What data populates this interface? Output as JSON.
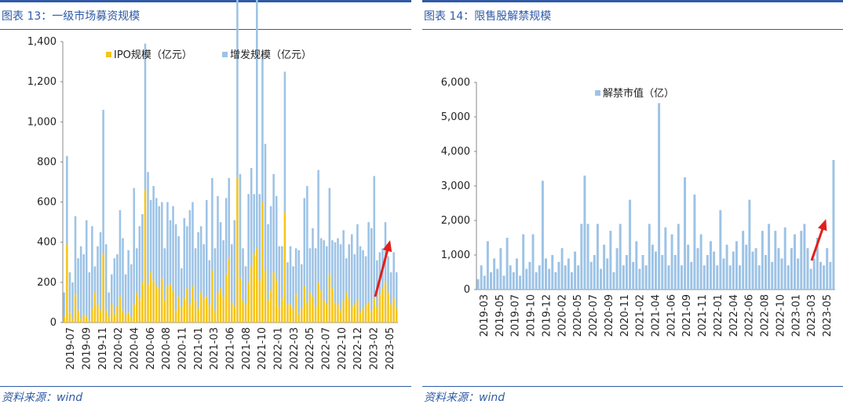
{
  "left": {
    "title": "图表 13：一级市场募资规模",
    "source": "资料来源：wind",
    "chart_data": {
      "type": "bar",
      "stacked": true,
      "title": "图表 13：一级市场募资规模",
      "ylim": [
        0,
        1400
      ],
      "yticks": [
        "0",
        "200",
        "400",
        "600",
        "800",
        "1,000",
        "1,200",
        "1,400"
      ],
      "xticks": [
        "2019-07",
        "2019-09",
        "2019-11",
        "2020-02",
        "2020-04",
        "2020-06",
        "2020-08",
        "2020-11",
        "2021-01",
        "2021-03",
        "2021-06",
        "2021-08",
        "2021-10",
        "2022-01",
        "2022-03",
        "2022-05",
        "2022-07",
        "2022-10",
        "2022-12",
        "2023-02",
        "2023-05"
      ],
      "legend_position": "top",
      "series": [
        {
          "name": "IPO规模（亿元）",
          "color": "#f5c518",
          "values": [
            30,
            390,
            50,
            20,
            140,
            60,
            20,
            40,
            30,
            10,
            70,
            150,
            90,
            60,
            340,
            60,
            30,
            90,
            40,
            80,
            130,
            60,
            40,
            50,
            30,
            90,
            150,
            120,
            200,
            660,
            190,
            250,
            210,
            180,
            170,
            220,
            110,
            180,
            190,
            160,
            60,
            130,
            80,
            120,
            170,
            90,
            180,
            110,
            70,
            150,
            120,
            130,
            90,
            260,
            60,
            150,
            170,
            130,
            240,
            320,
            100,
            80,
            720,
            220,
            110,
            90,
            200,
            280,
            340,
            370,
            210,
            600,
            260,
            110,
            160,
            250,
            210,
            80,
            120,
            550,
            90,
            90,
            70,
            140,
            40,
            70,
            180,
            100,
            150,
            130,
            80,
            200,
            160,
            110,
            90,
            240,
            170,
            100,
            90,
            60,
            110,
            150,
            120,
            80,
            90,
            110,
            50,
            70,
            90,
            100,
            60,
            120,
            80,
            140,
            170,
            200,
            150,
            90,
            120,
            70
          ]
        },
        {
          "name": "增发规模（亿元）",
          "color": "#9dc3e6",
          "values": [
            120,
            440,
            200,
            180,
            390,
            260,
            360,
            300,
            480,
            240,
            410,
            130,
            290,
            390,
            720,
            330,
            120,
            150,
            280,
            260,
            430,
            360,
            200,
            310,
            260,
            580,
            220,
            360,
            340,
            730,
            560,
            360,
            470,
            440,
            410,
            380,
            260,
            420,
            320,
            420,
            430,
            300,
            190,
            400,
            310,
            470,
            420,
            260,
            380,
            330,
            270,
            480,
            220,
            460,
            310,
            480,
            330,
            280,
            380,
            400,
            290,
            430,
            970,
            520,
            260,
            190,
            440,
            490,
            300,
            1280,
            430,
            740,
            630,
            380,
            420,
            490,
            420,
            300,
            260,
            700,
            210,
            290,
            210,
            230,
            320,
            220,
            440,
            580,
            220,
            340,
            290,
            560,
            260,
            300,
            290,
            430,
            240,
            300,
            330,
            330,
            350,
            170,
            270,
            360,
            250,
            380,
            330,
            290,
            240,
            400,
            410,
            610,
            230,
            210,
            200,
            300,
            180,
            160,
            230,
            180
          ]
        }
      ]
    }
  },
  "right": {
    "title": "图表 14：限售股解禁规模",
    "source": "资料来源：wind",
    "chart_data": {
      "type": "bar",
      "title": "图表 14：限售股解禁规模",
      "ylim": [
        0,
        6000
      ],
      "yticks": [
        "0",
        "1,000",
        "2,000",
        "3,000",
        "4,000",
        "5,000",
        "6,000"
      ],
      "xticks": [
        "2019-03",
        "2019-05",
        "2019-07",
        "2019-10",
        "2019-12",
        "2020-02",
        "2020-05",
        "2020-07",
        "2020-09",
        "2020-11",
        "2021-02",
        "2021-04",
        "2021-06",
        "2021-09",
        "2021-11",
        "2022-01",
        "2022-04",
        "2022-06",
        "2022-08",
        "2022-10",
        "2023-01",
        "2023-03",
        "2023-05"
      ],
      "legend_position": "top",
      "series": [
        {
          "name": "解禁市值（亿）",
          "color": "#9dc3e6",
          "values": [
            300,
            700,
            400,
            1400,
            500,
            900,
            600,
            1200,
            400,
            1500,
            700,
            500,
            900,
            400,
            1600,
            600,
            800,
            1600,
            500,
            700,
            3150,
            900,
            600,
            1000,
            500,
            800,
            1200,
            700,
            900,
            500,
            1100,
            700,
            1900,
            3300,
            1900,
            800,
            1000,
            1900,
            600,
            1300,
            900,
            1700,
            500,
            1200,
            1900,
            700,
            1000,
            2600,
            800,
            1400,
            600,
            1000,
            700,
            1900,
            1300,
            1100,
            5400,
            1000,
            1800,
            700,
            1600,
            1000,
            1900,
            700,
            3250,
            1300,
            800,
            2750,
            1200,
            1600,
            700,
            1000,
            1400,
            1100,
            700,
            2300,
            900,
            1300,
            700,
            1100,
            1400,
            700,
            1700,
            1300,
            2600,
            1100,
            1200,
            700,
            1700,
            1000,
            1900,
            800,
            1700,
            1200,
            900,
            1800,
            700,
            1200,
            1600,
            900,
            1700,
            1900,
            1200,
            600,
            900,
            1500,
            800,
            700,
            1200,
            800,
            3750
          ]
        }
      ]
    }
  }
}
